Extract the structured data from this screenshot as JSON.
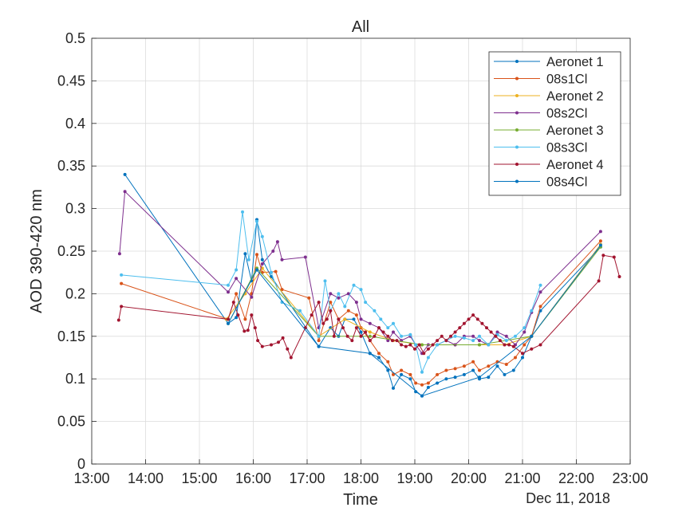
{
  "chart_data": {
    "type": "line",
    "title": "All",
    "xlabel": "Time",
    "ylabel": "AOD 390-420 nm",
    "date_label": "Dec 11, 2018",
    "xlim": [
      "13:00",
      "23:00"
    ],
    "ylim": [
      0,
      0.5
    ],
    "x_ticks": [
      "13:00",
      "14:00",
      "15:00",
      "16:00",
      "17:00",
      "18:00",
      "19:00",
      "20:00",
      "21:00",
      "22:00",
      "23:00"
    ],
    "y_ticks": [
      "0",
      "0.05",
      "0.1",
      "0.15",
      "0.2",
      "0.25",
      "0.3",
      "0.35",
      "0.4",
      "0.45",
      "0.5"
    ],
    "grid": true,
    "legend_position": "top-right",
    "series": [
      {
        "name": "Aeronet 1",
        "color": "#0072BD",
        "points": [
          [
            "13:37",
            0.34
          ],
          [
            "15:32",
            0.165
          ],
          [
            "15:41",
            0.172
          ],
          [
            "15:51",
            0.247
          ],
          [
            "15:58",
            0.215
          ],
          [
            "16:04",
            0.287
          ],
          [
            "16:10",
            0.24
          ],
          [
            "16:20",
            0.22
          ],
          [
            "17:13",
            0.138
          ],
          [
            "17:26",
            0.16
          ],
          [
            "17:35",
            0.15
          ],
          [
            "17:42",
            0.17
          ],
          [
            "17:52",
            0.17
          ],
          [
            "18:00",
            0.155
          ],
          [
            "18:10",
            0.13
          ],
          [
            "18:20",
            0.125
          ],
          [
            "18:30",
            0.11
          ],
          [
            "18:36",
            0.089
          ],
          [
            "18:45",
            0.105
          ],
          [
            "18:55",
            0.1
          ],
          [
            "19:01",
            0.085
          ],
          [
            "19:08",
            0.08
          ],
          [
            "19:15",
            0.09
          ],
          [
            "19:25",
            0.095
          ],
          [
            "19:35",
            0.1
          ],
          [
            "19:45",
            0.102
          ],
          [
            "19:55",
            0.105
          ],
          [
            "20:05",
            0.11
          ],
          [
            "20:12",
            0.1
          ],
          [
            "20:22",
            0.102
          ],
          [
            "20:32",
            0.115
          ],
          [
            "20:40",
            0.105
          ],
          [
            "20:50",
            0.11
          ],
          [
            "21:00",
            0.125
          ],
          [
            "21:10",
            0.15
          ],
          [
            "21:20",
            0.18
          ],
          [
            "22:27",
            0.255
          ]
        ]
      },
      {
        "name": "08s1Cl",
        "color": "#D95319",
        "points": [
          [
            "13:33",
            0.212
          ],
          [
            "15:32",
            0.17
          ],
          [
            "15:41",
            0.2
          ],
          [
            "15:51",
            0.17
          ],
          [
            "15:58",
            0.2
          ],
          [
            "16:04",
            0.246
          ],
          [
            "16:10",
            0.225
          ],
          [
            "16:25",
            0.226
          ],
          [
            "16:32",
            0.205
          ],
          [
            "17:02",
            0.195
          ],
          [
            "17:13",
            0.145
          ],
          [
            "17:26",
            0.19
          ],
          [
            "17:35",
            0.17
          ],
          [
            "17:46",
            0.18
          ],
          [
            "17:55",
            0.175
          ],
          [
            "18:00",
            0.16
          ],
          [
            "18:10",
            0.145
          ],
          [
            "18:20",
            0.13
          ],
          [
            "18:30",
            0.12
          ],
          [
            "18:36",
            0.105
          ],
          [
            "18:45",
            0.11
          ],
          [
            "18:55",
            0.105
          ],
          [
            "19:01",
            0.095
          ],
          [
            "19:08",
            0.093
          ],
          [
            "19:15",
            0.095
          ],
          [
            "19:25",
            0.105
          ],
          [
            "19:35",
            0.11
          ],
          [
            "19:45",
            0.112
          ],
          [
            "19:55",
            0.115
          ],
          [
            "20:05",
            0.12
          ],
          [
            "20:12",
            0.11
          ],
          [
            "20:22",
            0.115
          ],
          [
            "20:32",
            0.12
          ],
          [
            "20:42",
            0.117
          ],
          [
            "20:52",
            0.125
          ],
          [
            "21:02",
            0.14
          ],
          [
            "21:10",
            0.15
          ],
          [
            "21:20",
            0.185
          ],
          [
            "22:27",
            0.262
          ]
        ]
      },
      {
        "name": "Aeronet 2",
        "color": "#EDB120",
        "points": [
          [
            "15:30",
            0.17
          ],
          [
            "15:51",
            0.2
          ],
          [
            "16:10",
            0.23
          ],
          [
            "17:13",
            0.15
          ],
          [
            "17:42",
            0.17
          ],
          [
            "18:10",
            0.155
          ],
          [
            "18:36",
            0.145
          ],
          [
            "19:08",
            0.14
          ],
          [
            "19:45",
            0.14
          ],
          [
            "20:12",
            0.14
          ],
          [
            "20:40",
            0.14
          ],
          [
            "21:10",
            0.15
          ],
          [
            "22:27",
            0.258
          ]
        ]
      },
      {
        "name": "08s2Cl",
        "color": "#7E2F8E",
        "points": [
          [
            "13:31",
            0.247
          ],
          [
            "13:37",
            0.32
          ],
          [
            "15:32",
            0.202
          ],
          [
            "15:41",
            0.218
          ],
          [
            "15:58",
            0.196
          ],
          [
            "16:10",
            0.235
          ],
          [
            "16:22",
            0.25
          ],
          [
            "16:27",
            0.261
          ],
          [
            "16:32",
            0.24
          ],
          [
            "16:58",
            0.243
          ],
          [
            "17:13",
            0.16
          ],
          [
            "17:26",
            0.2
          ],
          [
            "17:35",
            0.195
          ],
          [
            "17:46",
            0.2
          ],
          [
            "17:55",
            0.19
          ],
          [
            "18:00",
            0.17
          ],
          [
            "18:10",
            0.165
          ],
          [
            "18:20",
            0.16
          ],
          [
            "18:30",
            0.145
          ],
          [
            "18:36",
            0.155
          ],
          [
            "18:45",
            0.145
          ],
          [
            "18:55",
            0.15
          ],
          [
            "19:01",
            0.14
          ],
          [
            "19:08",
            0.13
          ],
          [
            "19:15",
            0.14
          ],
          [
            "19:25",
            0.14
          ],
          [
            "19:35",
            0.145
          ],
          [
            "19:45",
            0.14
          ],
          [
            "19:55",
            0.15
          ],
          [
            "20:05",
            0.15
          ],
          [
            "20:12",
            0.145
          ],
          [
            "20:22",
            0.14
          ],
          [
            "20:32",
            0.155
          ],
          [
            "20:42",
            0.15
          ],
          [
            "20:52",
            0.14
          ],
          [
            "21:02",
            0.155
          ],
          [
            "21:10",
            0.178
          ],
          [
            "21:20",
            0.202
          ],
          [
            "22:27",
            0.273
          ]
        ]
      },
      {
        "name": "Aeronet 3",
        "color": "#77AC30",
        "points": [
          [
            "15:32",
            0.165
          ],
          [
            "16:04",
            0.23
          ],
          [
            "17:13",
            0.15
          ],
          [
            "18:10",
            0.15
          ],
          [
            "19:08",
            0.14
          ],
          [
            "20:12",
            0.14
          ],
          [
            "21:10",
            0.15
          ],
          [
            "22:27",
            0.255
          ]
        ]
      },
      {
        "name": "08s3Cl",
        "color": "#4DBEEE",
        "points": [
          [
            "13:33",
            0.222
          ],
          [
            "15:32",
            0.21
          ],
          [
            "15:41",
            0.228
          ],
          [
            "15:48",
            0.296
          ],
          [
            "15:55",
            0.24
          ],
          [
            "16:04",
            0.285
          ],
          [
            "16:10",
            0.267
          ],
          [
            "16:20",
            0.225
          ],
          [
            "16:32",
            0.19
          ],
          [
            "16:52",
            0.18
          ],
          [
            "17:13",
            0.15
          ],
          [
            "17:20",
            0.215
          ],
          [
            "17:26",
            0.18
          ],
          [
            "17:35",
            0.2
          ],
          [
            "17:42",
            0.185
          ],
          [
            "17:52",
            0.21
          ],
          [
            "18:00",
            0.205
          ],
          [
            "18:05",
            0.19
          ],
          [
            "18:15",
            0.18
          ],
          [
            "18:22",
            0.17
          ],
          [
            "18:30",
            0.16
          ],
          [
            "18:36",
            0.165
          ],
          [
            "18:45",
            0.15
          ],
          [
            "18:55",
            0.152
          ],
          [
            "19:01",
            0.14
          ],
          [
            "19:08",
            0.108
          ],
          [
            "19:15",
            0.125
          ],
          [
            "19:25",
            0.14
          ],
          [
            "19:35",
            0.145
          ],
          [
            "19:45",
            0.15
          ],
          [
            "19:55",
            0.148
          ],
          [
            "20:05",
            0.145
          ],
          [
            "20:12",
            0.15
          ],
          [
            "20:22",
            0.14
          ],
          [
            "20:32",
            0.152
          ],
          [
            "20:42",
            0.145
          ],
          [
            "20:52",
            0.15
          ],
          [
            "21:02",
            0.16
          ],
          [
            "21:10",
            0.18
          ],
          [
            "21:20",
            0.21
          ]
        ]
      },
      {
        "name": "Aeronet 4",
        "color": "#A2142F",
        "points": [
          [
            "13:30",
            0.169
          ],
          [
            "13:33",
            0.185
          ],
          [
            "15:32",
            0.17
          ],
          [
            "15:38",
            0.19
          ],
          [
            "15:43",
            0.175
          ],
          [
            "15:50",
            0.156
          ],
          [
            "15:54",
            0.157
          ],
          [
            "15:58",
            0.175
          ],
          [
            "16:02",
            0.16
          ],
          [
            "16:05",
            0.145
          ],
          [
            "16:10",
            0.138
          ],
          [
            "16:20",
            0.14
          ],
          [
            "16:28",
            0.143
          ],
          [
            "16:33",
            0.148
          ],
          [
            "16:38",
            0.135
          ],
          [
            "16:42",
            0.125
          ],
          [
            "16:58",
            0.16
          ],
          [
            "17:05",
            0.175
          ],
          [
            "17:13",
            0.19
          ],
          [
            "17:18",
            0.165
          ],
          [
            "17:22",
            0.17
          ],
          [
            "17:26",
            0.18
          ],
          [
            "17:30",
            0.15
          ],
          [
            "17:35",
            0.17
          ],
          [
            "17:40",
            0.16
          ],
          [
            "17:45",
            0.15
          ],
          [
            "17:50",
            0.145
          ],
          [
            "17:55",
            0.16
          ],
          [
            "18:00",
            0.15
          ],
          [
            "18:05",
            0.155
          ],
          [
            "18:10",
            0.145
          ],
          [
            "18:15",
            0.15
          ],
          [
            "18:20",
            0.16
          ],
          [
            "18:25",
            0.155
          ],
          [
            "18:30",
            0.15
          ],
          [
            "18:35",
            0.145
          ],
          [
            "18:40",
            0.145
          ],
          [
            "18:45",
            0.14
          ],
          [
            "18:50",
            0.138
          ],
          [
            "18:55",
            0.14
          ],
          [
            "19:00",
            0.135
          ],
          [
            "19:05",
            0.14
          ],
          [
            "19:10",
            0.13
          ],
          [
            "19:15",
            0.135
          ],
          [
            "19:20",
            0.14
          ],
          [
            "19:25",
            0.145
          ],
          [
            "19:30",
            0.15
          ],
          [
            "19:35",
            0.145
          ],
          [
            "19:40",
            0.15
          ],
          [
            "19:45",
            0.155
          ],
          [
            "19:50",
            0.16
          ],
          [
            "19:55",
            0.165
          ],
          [
            "20:00",
            0.17
          ],
          [
            "20:05",
            0.175
          ],
          [
            "20:10",
            0.17
          ],
          [
            "20:15",
            0.165
          ],
          [
            "20:20",
            0.16
          ],
          [
            "20:25",
            0.155
          ],
          [
            "20:30",
            0.15
          ],
          [
            "20:35",
            0.145
          ],
          [
            "20:40",
            0.14
          ],
          [
            "20:45",
            0.14
          ],
          [
            "20:50",
            0.138
          ],
          [
            "21:00",
            0.13
          ],
          [
            "21:10",
            0.135
          ],
          [
            "21:20",
            0.14
          ],
          [
            "22:25",
            0.215
          ],
          [
            "22:30",
            0.245
          ],
          [
            "22:42",
            0.243
          ],
          [
            "22:48",
            0.22
          ]
        ]
      },
      {
        "name": "08s4Cl",
        "color": "#0072BD",
        "points": [
          [
            "15:32",
            0.165
          ],
          [
            "16:04",
            0.228
          ],
          [
            "17:13",
            0.138
          ],
          [
            "18:10",
            0.13
          ],
          [
            "19:08",
            0.08
          ],
          [
            "20:12",
            0.102
          ],
          [
            "21:10",
            0.15
          ],
          [
            "22:27",
            0.257
          ]
        ]
      }
    ]
  }
}
